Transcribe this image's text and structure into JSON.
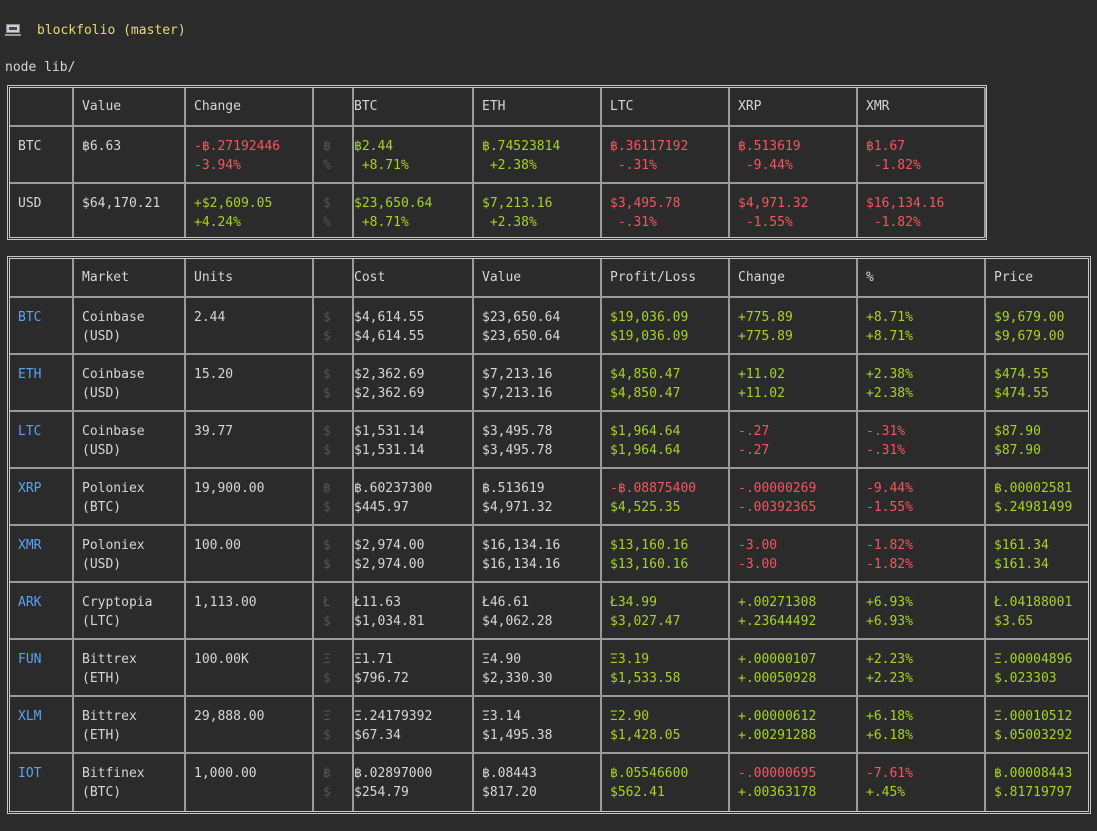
{
  "terminal": {
    "prompt_dir": "blockfolio (master)",
    "command": "node lib/"
  },
  "summary": {
    "headers": [
      "",
      "Value",
      "Change",
      "",
      "BTC",
      "ETH",
      "LTC",
      "XRP",
      "XMR"
    ],
    "rows": [
      {
        "label": "BTC",
        "value": "฿6.63",
        "change": [
          "-฿.27192446",
          "-3.94%"
        ],
        "sym": [
          "฿",
          "%"
        ],
        "coins": [
          {
            "amount": "฿2.44",
            "pct": " +8.71%",
            "amt_color": "green",
            "pct_color": "green"
          },
          {
            "amount": "฿.74523814",
            "pct": " +2.38%",
            "amt_color": "green",
            "pct_color": "green"
          },
          {
            "amount": "฿.36117192",
            "pct": " -.31%",
            "amt_color": "red",
            "pct_color": "red"
          },
          {
            "amount": "฿.513619",
            "pct": " -9.44%",
            "amt_color": "red",
            "pct_color": "red"
          },
          {
            "amount": "฿1.67",
            "pct": " -1.82%",
            "amt_color": "red",
            "pct_color": "red"
          }
        ],
        "change_color": "red"
      },
      {
        "label": "USD",
        "value": "$64,170.21",
        "change": [
          "+$2,609.05",
          "+4.24%"
        ],
        "sym": [
          "$",
          "%"
        ],
        "coins": [
          {
            "amount": "$23,650.64",
            "pct": " +8.71%",
            "amt_color": "green",
            "pct_color": "green"
          },
          {
            "amount": "$7,213.16",
            "pct": " +2.38%",
            "amt_color": "green",
            "pct_color": "green"
          },
          {
            "amount": "$3,495.78",
            "pct": " -.31%",
            "amt_color": "red",
            "pct_color": "red"
          },
          {
            "amount": "$4,971.32",
            "pct": " -1.55%",
            "amt_color": "red",
            "pct_color": "red"
          },
          {
            "amount": "$16,134.16",
            "pct": " -1.82%",
            "amt_color": "red",
            "pct_color": "red"
          }
        ],
        "change_color": "green"
      }
    ]
  },
  "holdings": {
    "headers": [
      "",
      "Market",
      "Units",
      "",
      "Cost",
      "Value",
      "Profit/Loss",
      "Change",
      "%",
      "Price"
    ],
    "rows": [
      {
        "coin": "BTC",
        "market": [
          "Coinbase",
          "(USD)"
        ],
        "units": "2.44",
        "sym": [
          "$",
          "$"
        ],
        "cost": [
          "$4,614.55",
          "$4,614.55"
        ],
        "value": [
          "$23,650.64",
          "$23,650.64"
        ],
        "pl": [
          "$19,036.09",
          "$19,036.09"
        ],
        "pl_color": [
          "green",
          "green"
        ],
        "change": [
          "+775.89",
          "+775.89"
        ],
        "change_color": [
          "green",
          "green"
        ],
        "pct": [
          "+8.71%",
          "+8.71%"
        ],
        "pct_color": [
          "green",
          "green"
        ],
        "price": [
          "$9,679.00",
          "$9,679.00"
        ]
      },
      {
        "coin": "ETH",
        "market": [
          "Coinbase",
          "(USD)"
        ],
        "units": "15.20",
        "sym": [
          "$",
          "$"
        ],
        "cost": [
          "$2,362.69",
          "$2,362.69"
        ],
        "value": [
          "$7,213.16",
          "$7,213.16"
        ],
        "pl": [
          "$4,850.47",
          "$4,850.47"
        ],
        "pl_color": [
          "green",
          "green"
        ],
        "change": [
          "+11.02",
          "+11.02"
        ],
        "change_color": [
          "green",
          "green"
        ],
        "pct": [
          "+2.38%",
          "+2.38%"
        ],
        "pct_color": [
          "green",
          "green"
        ],
        "price": [
          "$474.55",
          "$474.55"
        ]
      },
      {
        "coin": "LTC",
        "market": [
          "Coinbase",
          "(USD)"
        ],
        "units": "39.77",
        "sym": [
          "$",
          "$"
        ],
        "cost": [
          "$1,531.14",
          "$1,531.14"
        ],
        "value": [
          "$3,495.78",
          "$3,495.78"
        ],
        "pl": [
          "$1,964.64",
          "$1,964.64"
        ],
        "pl_color": [
          "green",
          "green"
        ],
        "change": [
          "-.27",
          "-.27"
        ],
        "change_color": [
          "red",
          "red"
        ],
        "pct": [
          "-.31%",
          "-.31%"
        ],
        "pct_color": [
          "red",
          "red"
        ],
        "price": [
          "$87.90",
          "$87.90"
        ]
      },
      {
        "coin": "XRP",
        "market": [
          "Poloniex",
          "(BTC)"
        ],
        "units": "19,900.00",
        "sym": [
          "฿",
          "$"
        ],
        "cost": [
          "฿.60237300",
          "$445.97"
        ],
        "value": [
          "฿.513619",
          "$4,971.32"
        ],
        "pl": [
          "-฿.08875400",
          "$4,525.35"
        ],
        "pl_color": [
          "red",
          "green"
        ],
        "change": [
          "-.00000269",
          "-.00392365"
        ],
        "change_color": [
          "red",
          "red"
        ],
        "pct": [
          "-9.44%",
          "-1.55%"
        ],
        "pct_color": [
          "red",
          "red"
        ],
        "price": [
          "฿.00002581",
          "$.24981499"
        ]
      },
      {
        "coin": "XMR",
        "market": [
          "Poloniex",
          "(USD)"
        ],
        "units": "100.00",
        "sym": [
          "$",
          "$"
        ],
        "cost": [
          "$2,974.00",
          "$2,974.00"
        ],
        "value": [
          "$16,134.16",
          "$16,134.16"
        ],
        "pl": [
          "$13,160.16",
          "$13,160.16"
        ],
        "pl_color": [
          "green",
          "green"
        ],
        "change": [
          "-3.00",
          "-3.00"
        ],
        "change_color": [
          "red",
          "red"
        ],
        "pct": [
          "-1.82%",
          "-1.82%"
        ],
        "pct_color": [
          "red",
          "red"
        ],
        "price": [
          "$161.34",
          "$161.34"
        ]
      },
      {
        "coin": "ARK",
        "market": [
          "Cryptopia",
          "(LTC)"
        ],
        "units": "1,113.00",
        "sym": [
          "Ł",
          "$"
        ],
        "cost": [
          "Ł11.63",
          "$1,034.81"
        ],
        "value": [
          "Ł46.61",
          "$4,062.28"
        ],
        "pl": [
          "Ł34.99",
          "$3,027.47"
        ],
        "pl_color": [
          "green",
          "green"
        ],
        "change": [
          "+.00271308",
          "+.23644492"
        ],
        "change_color": [
          "green",
          "green"
        ],
        "pct": [
          "+6.93%",
          "+6.93%"
        ],
        "pct_color": [
          "green",
          "green"
        ],
        "price": [
          "Ł.04188001",
          "$3.65"
        ]
      },
      {
        "coin": "FUN",
        "market": [
          "Bittrex",
          "(ETH)"
        ],
        "units": "100.00K",
        "sym": [
          "Ξ",
          "$"
        ],
        "cost": [
          "Ξ1.71",
          "$796.72"
        ],
        "value": [
          "Ξ4.90",
          "$2,330.30"
        ],
        "pl": [
          "Ξ3.19",
          "$1,533.58"
        ],
        "pl_color": [
          "green",
          "green"
        ],
        "change": [
          "+.00000107",
          "+.00050928"
        ],
        "change_color": [
          "green",
          "green"
        ],
        "pct": [
          "+2.23%",
          "+2.23%"
        ],
        "pct_color": [
          "green",
          "green"
        ],
        "price": [
          "Ξ.00004896",
          "$.023303"
        ]
      },
      {
        "coin": "XLM",
        "market": [
          "Bittrex",
          "(ETH)"
        ],
        "units": "29,888.00",
        "sym": [
          "Ξ",
          "$"
        ],
        "cost": [
          "Ξ.24179392",
          "$67.34"
        ],
        "value": [
          "Ξ3.14",
          "$1,495.38"
        ],
        "pl": [
          "Ξ2.90",
          "$1,428.05"
        ],
        "pl_color": [
          "green",
          "green"
        ],
        "change": [
          "+.00000612",
          "+.00291288"
        ],
        "change_color": [
          "green",
          "green"
        ],
        "pct": [
          "+6.18%",
          "+6.18%"
        ],
        "pct_color": [
          "green",
          "green"
        ],
        "price": [
          "Ξ.00010512",
          "$.05003292"
        ]
      },
      {
        "coin": "IOT",
        "market": [
          "Bitfinex",
          "(BTC)"
        ],
        "units": "1,000.00",
        "sym": [
          "฿",
          "$"
        ],
        "cost": [
          "฿.02897000",
          "$254.79"
        ],
        "value": [
          "฿.08443",
          "$817.20"
        ],
        "pl": [
          "฿.05546600",
          "$562.41"
        ],
        "pl_color": [
          "green",
          "green"
        ],
        "change": [
          "-.00000695",
          "+.00363178"
        ],
        "change_color": [
          "red",
          "green"
        ],
        "pct": [
          "-7.61%",
          "+.45%"
        ],
        "pct_color": [
          "red",
          "green"
        ],
        "price": [
          "฿.00008443",
          "$.81719797"
        ]
      }
    ]
  },
  "colors": {
    "green": "#a6d22a",
    "red": "#f2575e",
    "blue": "#5aa3f0",
    "prompt": "#e6db74",
    "background": "#2b2b2b"
  }
}
